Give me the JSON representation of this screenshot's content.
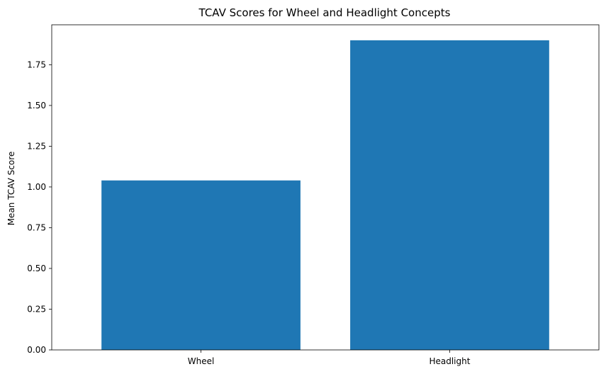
{
  "chart_data": {
    "type": "bar",
    "title": "TCAV Scores for Wheel and Headlight Concepts",
    "xlabel": "",
    "ylabel": "Mean TCAV Score",
    "categories": [
      "Wheel",
      "Headlight"
    ],
    "values": [
      1.04,
      1.9
    ],
    "ylim": [
      0,
      1.995
    ],
    "yticks": [
      0.0,
      0.25,
      0.5,
      0.75,
      1.0,
      1.25,
      1.5,
      1.75
    ],
    "ytick_labels": [
      "0.00",
      "0.25",
      "0.50",
      "0.75",
      "1.00",
      "1.25",
      "1.50",
      "1.75"
    ],
    "bar_color": "#1f77b4",
    "grid": false,
    "legend": "none"
  }
}
